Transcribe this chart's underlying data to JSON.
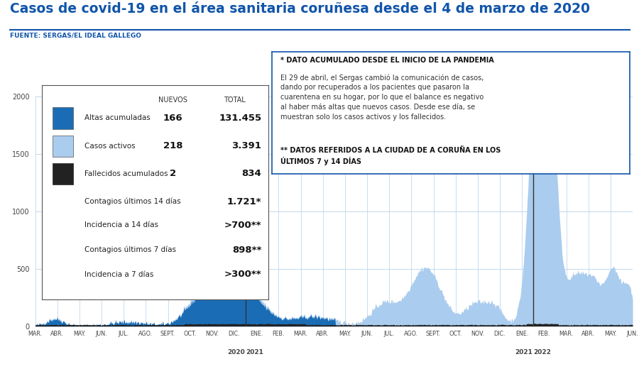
{
  "title": "Casos de covid-19 en el área sanitaria coruñesa desde el 4 de marzo de 2020",
  "source": "FUENTE: SERGAS/EL IDEAL GALLEGO",
  "title_color": "#1155aa",
  "source_color": "#1155aa",
  "bg_color": "#ffffff",
  "area_color_dark": "#1a6db5",
  "area_color_light": "#aaccee",
  "deaths_color": "#222222",
  "ylim": [
    0,
    2000
  ],
  "yticks": [
    0,
    500,
    1000,
    1500,
    2000
  ],
  "x_labels": [
    "MAR.",
    "ABR.",
    "MAY.",
    "JUN.",
    "JUL.",
    "AGO.",
    "SEPT.",
    "OCT.",
    "NOV.",
    "DIC.",
    "ENE.",
    "FEB.",
    "MAR.",
    "ABR.",
    "MAY.",
    "JUN.",
    "JUL.",
    "AGO.",
    "SEPT.",
    "OCT.",
    "NOV.",
    "DIC.",
    "ENE.",
    "FEB.",
    "MAR.",
    "ABR.",
    "MAY.",
    "JUN."
  ],
  "year_dividers": [
    9,
    22
  ],
  "year_labels_left": [
    "2020",
    "2021"
  ],
  "year_labels_right": [
    "2021",
    "2022"
  ],
  "legend_rows": [
    {
      "color": "#1a6db5",
      "label": "Altas acumuladas",
      "nuevos": "166",
      "total": "131.455",
      "bold_total": true
    },
    {
      "color": "#aaccee",
      "label": "Casos activos",
      "nuevos": "218",
      "total": "3.391",
      "bold_total": true
    },
    {
      "color": "#222222",
      "label": "Fallecidos acumulados",
      "nuevos": "2",
      "total": "834",
      "bold_total": true
    },
    {
      "color": null,
      "label": "Contagios últimos 14 días",
      "nuevos": null,
      "total": "1.721*",
      "bold_total": true
    },
    {
      "color": null,
      "label": "Incidencia a 14 días",
      "nuevos": null,
      "total": ">700**",
      "bold_total": true
    },
    {
      "color": null,
      "label": "Contagios últimos 7 días",
      "nuevos": null,
      "total": "898**",
      "bold_total": true
    },
    {
      "color": null,
      "label": "Incidencia a 7 días",
      "nuevos": null,
      "total": ">300**",
      "bold_total": true
    }
  ],
  "note_line1": "* DATO ACUMULADO DESDE EL INICIO DE LA PANDEMIA",
  "note_body": "El 29 de abril, el Sergas cambió la comunicación de casos,\ndando por recuperados a los pacientes que pasaron la\ncuarentena en su hogar, por lo que el balance es negativo\nal haber más altas que nuevos casos. Desde ese día, se\nmuestran solo los casos activos y los fallecidos.",
  "note_line2": "** DATOS REFERIDOS A LA CIUDAD DE A CORUÑA EN LOS\nÚLTIMOS 7 y 14 DÍAS",
  "note_border_color": "#1155aa",
  "grid_color": "#c0d8ee",
  "tick_color": "#444444",
  "divider_color": "#333333",
  "n_points": 840
}
